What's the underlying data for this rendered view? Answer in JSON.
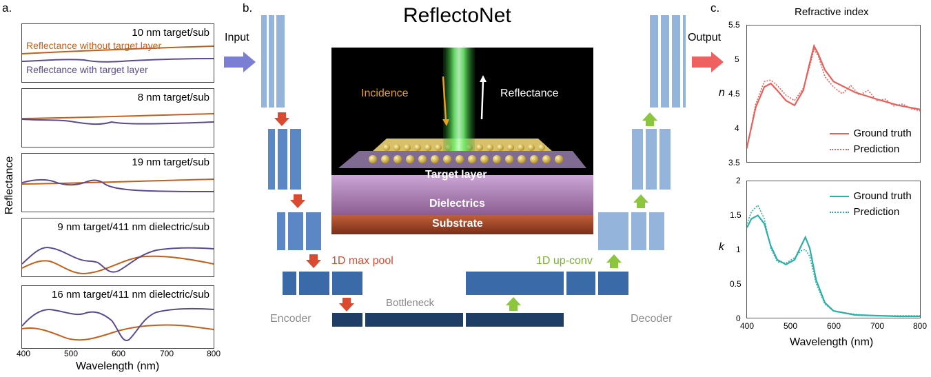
{
  "panel_a": {
    "letter": "a.",
    "y_label": "Reflectance",
    "x_label": "Wavelength (nm)",
    "x_ticks": [
      "400",
      "500",
      "600",
      "700",
      "800"
    ],
    "legend_without": "Reflectance without target layer",
    "legend_with": "Reflectance with target layer",
    "subplots": [
      {
        "label": "10 nm target/sub"
      },
      {
        "label": "8 nm target/sub"
      },
      {
        "label": "19 nm target/sub"
      },
      {
        "label": "9 nm target/411 nm dielectric/sub"
      },
      {
        "label": "16 nm target/411 nm dielectric/sub"
      }
    ],
    "colors": {
      "without": "#c0601a",
      "with": "#5b4a8e"
    }
  },
  "panel_b": {
    "letter": "b.",
    "title": "ReflectoNet",
    "input": "Input",
    "output": "Output",
    "maxpool": "1D max pool",
    "upconv": "1D up-conv",
    "bottleneck": "Bottleneck",
    "encoder": "Encoder",
    "decoder": "Decoder",
    "scene": {
      "incidence": "Incidence",
      "reflectance": "Reflectance",
      "target_layer": "Target layer",
      "dielectrics": "Dielectrics",
      "substrate": "Substrate"
    },
    "colors": {
      "input_arrow": "#7a7fd4",
      "output_arrow": "#ef6060",
      "pool_arrow": "#d94a30",
      "up_arrow": "#8cc63f",
      "encoder_bar": "#3b6aa8",
      "bottleneck_bar": "#1f3e66"
    }
  },
  "panel_c": {
    "letter": "c.",
    "title": "Refractive index",
    "x_label": "Wavelength (nm)",
    "x_ticks": [
      "400",
      "500",
      "600",
      "700",
      "800"
    ],
    "n_label": "n",
    "k_label": "k",
    "n_ticks": [
      "5.5",
      "5",
      "4.5",
      "4",
      "3.5"
    ],
    "k_ticks": [
      "2",
      "1.5",
      "1",
      "0.5",
      "0"
    ],
    "legend_truth": "Ground truth",
    "legend_pred": "Prediction",
    "colors": {
      "n": "#e8605a",
      "k": "#2bb0a8"
    }
  },
  "chart_data": [
    {
      "type": "line",
      "title": "Refractive index",
      "xlabel": "Wavelength (nm)",
      "ylabel": "n",
      "xlim": [
        400,
        800
      ],
      "ylim": [
        3.5,
        5.5
      ],
      "series": [
        {
          "name": "Ground truth",
          "x": [
            400,
            420,
            440,
            455,
            470,
            490,
            510,
            530,
            545,
            555,
            565,
            580,
            600,
            650,
            700,
            750,
            800
          ],
          "values": [
            3.72,
            4.3,
            4.6,
            4.65,
            4.55,
            4.4,
            4.33,
            4.55,
            4.95,
            5.2,
            5.08,
            4.85,
            4.68,
            4.52,
            4.42,
            4.33,
            4.27
          ]
        },
        {
          "name": "Prediction",
          "x": [
            400,
            420,
            440,
            455,
            470,
            490,
            510,
            530,
            545,
            555,
            565,
            580,
            600,
            620,
            640,
            660,
            680,
            700,
            720,
            740,
            760,
            780,
            800
          ],
          "values": [
            3.7,
            4.35,
            4.68,
            4.7,
            4.62,
            4.48,
            4.4,
            4.58,
            4.9,
            5.15,
            5.05,
            4.75,
            4.6,
            4.5,
            4.62,
            4.48,
            4.55,
            4.4,
            4.42,
            4.32,
            4.35,
            4.28,
            4.25
          ]
        }
      ]
    },
    {
      "type": "line",
      "xlabel": "Wavelength (nm)",
      "ylabel": "k",
      "xlim": [
        400,
        800
      ],
      "ylim": [
        0,
        2
      ],
      "series": [
        {
          "name": "Ground truth",
          "x": [
            400,
            410,
            425,
            440,
            455,
            470,
            490,
            510,
            525,
            535,
            545,
            560,
            580,
            600,
            650,
            700,
            750,
            800
          ],
          "values": [
            1.32,
            1.45,
            1.5,
            1.38,
            1.05,
            0.85,
            0.78,
            0.85,
            1.05,
            1.18,
            1.02,
            0.55,
            0.22,
            0.1,
            0.04,
            0.03,
            0.02,
            0.02
          ]
        },
        {
          "name": "Prediction",
          "x": [
            400,
            410,
            425,
            440,
            455,
            470,
            490,
            510,
            525,
            535,
            545,
            560,
            580,
            600,
            650,
            700,
            750,
            800
          ],
          "values": [
            1.38,
            1.55,
            1.65,
            1.45,
            1.02,
            0.82,
            0.8,
            0.88,
            0.98,
            1.0,
            0.9,
            0.5,
            0.2,
            0.1,
            0.05,
            0.03,
            0.03,
            0.03
          ]
        }
      ]
    }
  ]
}
